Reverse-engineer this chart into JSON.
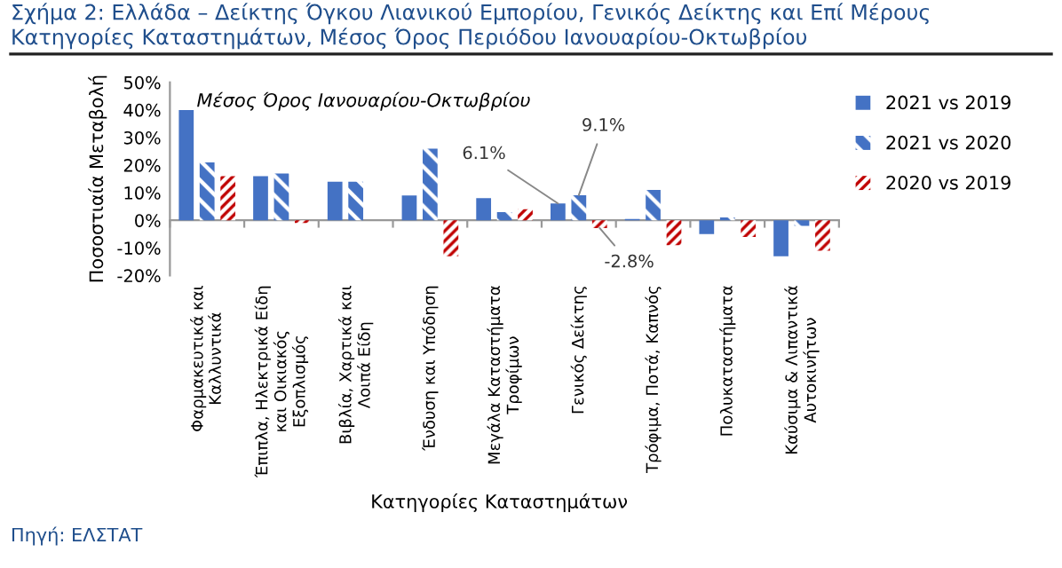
{
  "chart_data": {
    "type": "bar",
    "title": "Σχήμα 2: Ελλάδα – Δείκτης Όγκου Λιανικού Εμπορίου, Γενικός Δείκτης και Επί Μέρους Κατηγορίες Καταστημάτων, Μέσος Όρος Περιόδου Ιανουαρίου-Οκτωβρίου",
    "xlabel": "Κατηγορίες Καταστημάτων",
    "ylabel": "Ποσοστιαία Μεταβολή",
    "categories": [
      "Φαρμακευτικά και\nΚαλλυντικά",
      "Έπιπλα, Ηλεκτρικά Είδη\nκαι Οικιακός\nΕξοπλισμός",
      "Βιβλία, Χαρτικά και\nΛοιπά Είδη",
      "Ένδυση και Υπόδηση",
      "Μεγάλα Καταστήματα\nΤροφίμων",
      "Γενικός Δείκτης",
      "Τρόφιμα, Ποτά, Καπνός",
      "Πολυκαταστήματα",
      "Καύσιμα & Λιπαντικά\nΑυτοκινήτων"
    ],
    "series": [
      {
        "name": "2021 vs 2019",
        "color": "#4472c4",
        "values": [
          40,
          16,
          14,
          9,
          8,
          6.1,
          0.5,
          -5,
          -13
        ],
        "value_labels": [
          null,
          null,
          null,
          null,
          null,
          "6.1%",
          null,
          null,
          null
        ]
      },
      {
        "name": "2021 vs 2020",
        "color": "#4472c4",
        "values": [
          21,
          17,
          14,
          26,
          3,
          9.1,
          11,
          1,
          -2
        ],
        "value_labels": [
          null,
          null,
          null,
          null,
          null,
          "9.1%",
          null,
          null,
          null
        ]
      },
      {
        "name": "2020 vs 2019",
        "color": "#c00000",
        "values": [
          16,
          -1,
          0,
          -13,
          4,
          -2.8,
          -9,
          -6,
          -11
        ],
        "value_labels": [
          null,
          null,
          null,
          null,
          null,
          "-2.8%",
          null,
          null,
          null
        ]
      }
    ],
    "ylim": [
      -20,
      50
    ],
    "yticks": [
      {
        "value": -20,
        "label": "-20%"
      },
      {
        "value": -10,
        "label": "-10%"
      },
      {
        "value": 0,
        "label": "0%"
      },
      {
        "value": 10,
        "label": "10%"
      },
      {
        "value": 20,
        "label": "20%"
      },
      {
        "value": 30,
        "label": "30%"
      },
      {
        "value": 40,
        "label": "40%"
      },
      {
        "value": 50,
        "label": "50%"
      }
    ],
    "annotations": [
      "Μέσος Όρος Ιανουαρίου-Οκτωβρίου",
      "Πηγή: ΕΛΣΤΑΤ"
    ],
    "legend": "right"
  }
}
